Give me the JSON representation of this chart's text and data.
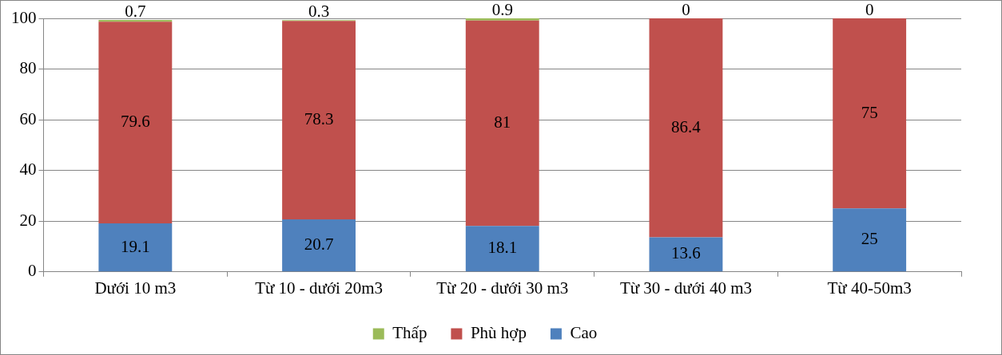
{
  "chart_data": {
    "type": "bar",
    "stacked": true,
    "categories": [
      "Dưới 10 m3",
      "Từ 10 - dưới 20m3",
      "Từ 20 - dưới 30 m3",
      "Từ 30 - dưới 40 m3",
      "Từ 40-50m3"
    ],
    "series": [
      {
        "name": "Cao",
        "color": "#4f81bd",
        "values": [
          19.1,
          20.7,
          18.1,
          13.6,
          25
        ]
      },
      {
        "name": "Phù hợp",
        "color": "#c0504d",
        "values": [
          79.6,
          78.3,
          81,
          86.4,
          75
        ]
      },
      {
        "name": "Thấp",
        "color": "#9bbb59",
        "values": [
          0.7,
          0.3,
          0.9,
          0,
          0
        ]
      }
    ],
    "ylim": [
      0,
      100
    ],
    "yticks": [
      0,
      20,
      40,
      60,
      80,
      100
    ],
    "grid": "y",
    "legend": "bottom",
    "data_labels": true
  }
}
